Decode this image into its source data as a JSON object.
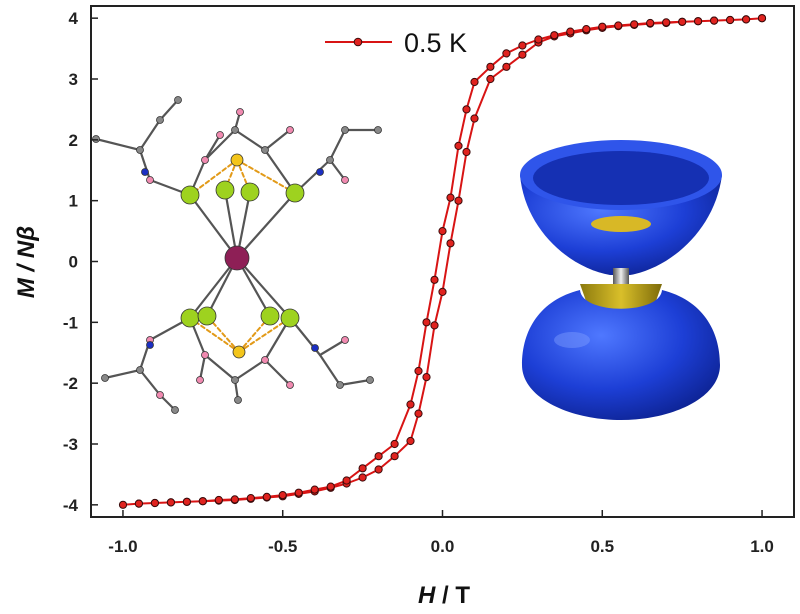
{
  "chart_data": {
    "type": "line",
    "xlabel_italic": "H",
    "xlabel_rest": " / T",
    "ylabel_italic": "M / Nβ",
    "xlim": [
      -1.1,
      1.1
    ],
    "ylim": [
      -4.2,
      4.2
    ],
    "xticks": [
      -1.0,
      -0.5,
      0.0,
      0.5,
      1.0
    ],
    "xtick_labels": [
      "-1.0",
      "-0.5",
      "0.0",
      "0.5",
      "1.0"
    ],
    "yticks": [
      -4,
      -3,
      -2,
      -1,
      0,
      1,
      2,
      3,
      4
    ],
    "ytick_labels": [
      "-4",
      "-3",
      "-2",
      "-1",
      "0",
      "1",
      "2",
      "3",
      "4"
    ],
    "grid": false,
    "legend_position": "top-center",
    "series": [
      {
        "name": "0.5 K",
        "color": "#d81414",
        "x": [
          1.0,
          0.95,
          0.9,
          0.85,
          0.8,
          0.75,
          0.7,
          0.65,
          0.6,
          0.55,
          0.5,
          0.45,
          0.4,
          0.35,
          0.3,
          0.25,
          0.2,
          0.15,
          0.1,
          0.075,
          0.05,
          0.025,
          0.0,
          -0.025,
          -0.05,
          -0.075,
          -0.1,
          -0.15,
          -0.2,
          -0.25,
          -0.3,
          -0.35,
          -0.4,
          -0.45,
          -0.5,
          -0.55,
          -0.6,
          -0.65,
          -0.7,
          -0.75,
          -0.8,
          -0.85,
          -0.9,
          -0.95,
          -1.0,
          -0.95,
          -0.9,
          -0.85,
          -0.8,
          -0.75,
          -0.7,
          -0.65,
          -0.6,
          -0.55,
          -0.5,
          -0.45,
          -0.4,
          -0.35,
          -0.3,
          -0.25,
          -0.2,
          -0.15,
          -0.1,
          -0.075,
          -0.05,
          -0.025,
          0.0,
          0.025,
          0.05,
          0.075,
          0.1,
          0.15,
          0.2,
          0.25,
          0.3,
          0.35,
          0.4,
          0.45,
          0.5,
          0.55,
          0.6,
          0.65,
          0.7,
          0.75,
          0.8,
          0.85,
          0.9,
          0.95,
          1.0
        ],
        "y": [
          4.0,
          3.98,
          3.97,
          3.96,
          3.95,
          3.94,
          3.92,
          3.91,
          3.89,
          3.87,
          3.84,
          3.8,
          3.75,
          3.7,
          3.6,
          3.4,
          3.2,
          3.0,
          2.35,
          1.8,
          1.0,
          0.3,
          -0.5,
          -1.05,
          -1.9,
          -2.5,
          -2.95,
          -3.2,
          -3.42,
          -3.55,
          -3.65,
          -3.72,
          -3.78,
          -3.82,
          -3.86,
          -3.88,
          -3.9,
          -3.92,
          -3.93,
          -3.94,
          -3.95,
          -3.96,
          -3.97,
          -3.98,
          -4.0,
          -3.98,
          -3.97,
          -3.96,
          -3.95,
          -3.94,
          -3.92,
          -3.91,
          -3.89,
          -3.87,
          -3.84,
          -3.8,
          -3.75,
          -3.7,
          -3.6,
          -3.4,
          -3.2,
          -3.0,
          -2.35,
          -1.8,
          -1.0,
          -0.3,
          0.5,
          1.05,
          1.9,
          2.5,
          2.95,
          3.2,
          3.42,
          3.55,
          3.65,
          3.72,
          3.78,
          3.82,
          3.86,
          3.88,
          3.9,
          3.92,
          3.93,
          3.94,
          3.95,
          3.96,
          3.97,
          3.98,
          4.0
        ]
      }
    ]
  }
}
